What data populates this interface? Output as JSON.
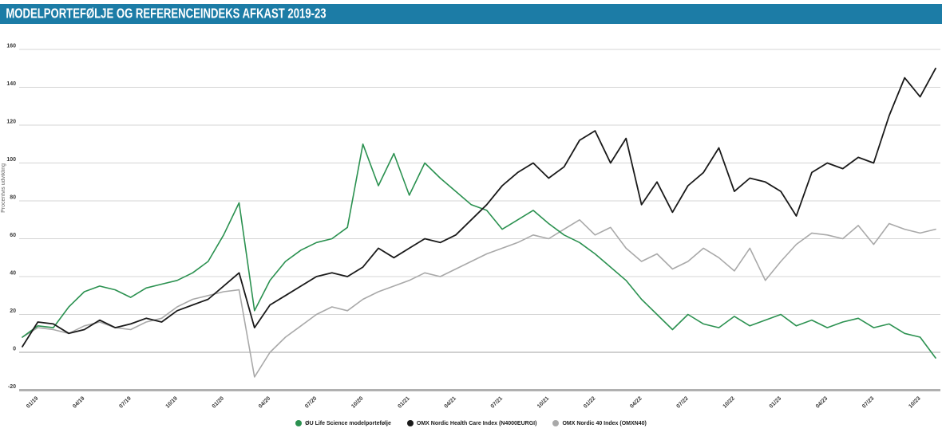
{
  "header": {
    "title": "MODELPORTEFØLJE OG REFERENCEINDEKS AFKAST 2019-23",
    "background_color": "#1c7ca6",
    "text_color": "#ffffff"
  },
  "chart_data": {
    "type": "line",
    "title": "Modelportefølje og referenceindeks afkast 2019-23",
    "ylabel": "Procentvis udvikling",
    "ylim": [
      -20,
      160
    ],
    "ytick_step": 20,
    "y_tick_labels": [
      "-20",
      "0",
      "20",
      "40",
      "60",
      "80",
      "100",
      "120",
      "140",
      "160"
    ],
    "grid": true,
    "legend_position": "bottom",
    "months": 60,
    "x_start": "01/19",
    "x_end": "12/23",
    "x_tick_months": [
      0,
      3,
      6,
      9,
      12,
      15,
      18,
      21,
      24,
      27,
      30,
      33,
      36,
      39,
      42,
      45,
      48,
      51,
      54,
      57
    ],
    "x_tick_labels": [
      "01/19",
      "04/19",
      "07/19",
      "10/19",
      "01/20",
      "04/20",
      "07/20",
      "10/20",
      "01/21",
      "04/21",
      "07/21",
      "10/21",
      "01/22",
      "04/22",
      "07/22",
      "10/22",
      "01/23",
      "04/23",
      "07/23",
      "10/23"
    ],
    "series": [
      {
        "name": "ØU Life Science modelportefølje",
        "color": "#2b9150",
        "values": [
          8,
          14,
          13,
          24,
          32,
          35,
          33,
          29,
          34,
          36,
          38,
          42,
          48,
          62,
          79,
          22,
          38,
          48,
          54,
          58,
          60,
          66,
          110,
          88,
          105,
          83,
          100,
          92,
          85,
          78,
          75,
          65,
          70,
          75,
          68,
          62,
          58,
          52,
          45,
          38,
          28,
          20,
          12,
          20,
          15,
          13,
          19,
          14,
          17,
          20,
          14,
          17,
          13,
          16,
          18,
          13,
          15,
          10,
          8,
          -3
        ]
      },
      {
        "name": "OMX Nordic Health Care Index (N4000EURGI)",
        "color": "#1a1a1a",
        "values": [
          3,
          16,
          15,
          10,
          12,
          17,
          13,
          15,
          18,
          16,
          22,
          25,
          28,
          35,
          42,
          13,
          25,
          30,
          35,
          40,
          42,
          40,
          45,
          55,
          50,
          55,
          60,
          58,
          62,
          70,
          78,
          88,
          95,
          100,
          92,
          98,
          112,
          117,
          100,
          113,
          78,
          90,
          74,
          88,
          95,
          108,
          85,
          92,
          90,
          85,
          72,
          95,
          100,
          97,
          103,
          100,
          125,
          145,
          135,
          150
        ]
      },
      {
        "name": "OMX Nordic 40 Index (OMXN40)",
        "color": "#a9a9a9",
        "values": [
          8,
          13,
          12,
          10,
          14,
          16,
          13,
          12,
          16,
          18,
          24,
          28,
          30,
          32,
          33,
          -13,
          0,
          8,
          14,
          20,
          24,
          22,
          28,
          32,
          35,
          38,
          42,
          40,
          44,
          48,
          52,
          55,
          58,
          62,
          60,
          65,
          70,
          62,
          66,
          55,
          48,
          52,
          44,
          48,
          55,
          50,
          43,
          55,
          38,
          48,
          57,
          63,
          62,
          60,
          67,
          57,
          68,
          65,
          63,
          65
        ]
      }
    ],
    "gridline_color": "#d4d4d4",
    "zero_line_color": "#c0c0c0",
    "bottom_line_color": "#b0b0b0"
  }
}
